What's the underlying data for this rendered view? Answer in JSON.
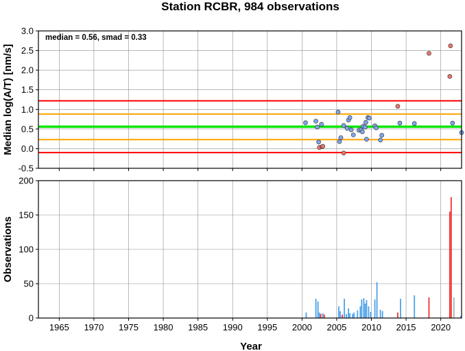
{
  "chart_data": [
    {
      "type": "scatter",
      "title": "Station RCBR, 984 observations",
      "xlabel": "",
      "ylabel": "Median log(A/T) [nm/s]",
      "annotation": "median = 0.56, smad = 0.33",
      "xlim": [
        1962,
        2023
      ],
      "ylim": [
        -0.5,
        3.0
      ],
      "xticks": [
        "1965",
        "1970",
        "1975",
        "1980",
        "1985",
        "1990",
        "1995",
        "2000",
        "2005",
        "2010",
        "2015",
        "2020"
      ],
      "yticks": [
        "-0.5",
        "0.0",
        "0.5",
        "1.0",
        "1.5",
        "2.0",
        "2.5",
        "3.0"
      ],
      "grid": true,
      "colors": {
        "normal": "#7ea6f0",
        "outlier": "#f0746a",
        "red_line": "#ff0000",
        "orange_line": "#ffa500",
        "green_band": "#00e600"
      },
      "hlines": [
        {
          "y": 1.22,
          "color": "#ff0000"
        },
        {
          "y": 0.88,
          "color": "#ffa500"
        },
        {
          "y": 0.56,
          "color": "#00e600",
          "band": [
            0.53,
            0.59
          ]
        },
        {
          "y": 0.23,
          "color": "#ffa500"
        },
        {
          "y": -0.1,
          "color": "#ff0000"
        }
      ],
      "series": [
        {
          "points": [
            [
              2000.5,
              0.66
            ],
            [
              2002.0,
              0.7
            ],
            [
              2002.2,
              0.55
            ],
            [
              2002.4,
              0.17
            ],
            [
              2002.8,
              0.62
            ],
            [
              2005.2,
              0.93
            ],
            [
              2005.4,
              0.18
            ],
            [
              2005.6,
              0.28
            ],
            [
              2006.0,
              0.59
            ],
            [
              2006.5,
              0.52
            ],
            [
              2006.7,
              0.73
            ],
            [
              2006.9,
              0.79
            ],
            [
              2007.1,
              0.48
            ],
            [
              2007.4,
              0.35
            ],
            [
              2008.2,
              0.47
            ],
            [
              2008.5,
              0.48
            ],
            [
              2008.7,
              0.43
            ],
            [
              2008.8,
              0.57
            ],
            [
              2009.1,
              0.55
            ],
            [
              2009.2,
              0.67
            ],
            [
              2009.3,
              0.24
            ],
            [
              2009.5,
              0.79
            ],
            [
              2009.7,
              0.78
            ],
            [
              2010.5,
              0.58
            ],
            [
              2010.7,
              0.53
            ],
            [
              2011.3,
              0.22
            ],
            [
              2011.5,
              0.34
            ],
            [
              2014.1,
              0.65
            ],
            [
              2016.2,
              0.64
            ],
            [
              2021.7,
              0.65
            ],
            [
              2023.0,
              0.41
            ]
          ]
        },
        {
          "points": [
            [
              2002.5,
              0.03
            ],
            [
              2002.9,
              0.05
            ],
            [
              2003.0,
              0.06
            ],
            [
              2006.0,
              -0.11
            ],
            [
              2013.8,
              1.08
            ],
            [
              2018.3,
              2.43
            ],
            [
              2021.4,
              2.62
            ],
            [
              2021.3,
              1.84
            ]
          ]
        }
      ]
    },
    {
      "type": "bar",
      "xlabel": "Year",
      "ylabel": "Observations",
      "xlim": [
        1962,
        2023
      ],
      "ylim": [
        0,
        200
      ],
      "xticks": [
        "1965",
        "1970",
        "1975",
        "1980",
        "1985",
        "1990",
        "1995",
        "2000",
        "2005",
        "2010",
        "2015",
        "2020"
      ],
      "yticks": [
        "0",
        "50",
        "100",
        "150",
        "200"
      ],
      "grid": true,
      "bars": [
        {
          "x": 2000.6,
          "v": 8,
          "c": "blue"
        },
        {
          "x": 2002.0,
          "v": 28,
          "c": "blue"
        },
        {
          "x": 2002.3,
          "v": 24,
          "c": "blue"
        },
        {
          "x": 2002.5,
          "v": 8,
          "c": "blue"
        },
        {
          "x": 2002.7,
          "v": 6,
          "c": "red"
        },
        {
          "x": 2003.0,
          "v": 7,
          "c": "blue"
        },
        {
          "x": 2003.2,
          "v": 5,
          "c": "red"
        },
        {
          "x": 2005.3,
          "v": 17,
          "c": "blue"
        },
        {
          "x": 2005.5,
          "v": 10,
          "c": "blue"
        },
        {
          "x": 2005.8,
          "v": 5,
          "c": "red"
        },
        {
          "x": 2006.1,
          "v": 28,
          "c": "blue"
        },
        {
          "x": 2006.4,
          "v": 6,
          "c": "blue"
        },
        {
          "x": 2006.7,
          "v": 14,
          "c": "blue"
        },
        {
          "x": 2006.9,
          "v": 7,
          "c": "blue"
        },
        {
          "x": 2007.3,
          "v": 6,
          "c": "blue"
        },
        {
          "x": 2007.5,
          "v": 8,
          "c": "blue"
        },
        {
          "x": 2008.0,
          "v": 11,
          "c": "blue"
        },
        {
          "x": 2008.4,
          "v": 17,
          "c": "blue"
        },
        {
          "x": 2008.6,
          "v": 27,
          "c": "blue"
        },
        {
          "x": 2008.9,
          "v": 29,
          "c": "blue"
        },
        {
          "x": 2009.1,
          "v": 21,
          "c": "blue"
        },
        {
          "x": 2009.3,
          "v": 26,
          "c": "blue"
        },
        {
          "x": 2009.6,
          "v": 17,
          "c": "blue"
        },
        {
          "x": 2009.9,
          "v": 9,
          "c": "blue"
        },
        {
          "x": 2010.5,
          "v": 27,
          "c": "blue"
        },
        {
          "x": 2010.8,
          "v": 52,
          "c": "blue"
        },
        {
          "x": 2011.3,
          "v": 12,
          "c": "blue"
        },
        {
          "x": 2011.6,
          "v": 10,
          "c": "blue"
        },
        {
          "x": 2013.8,
          "v": 8,
          "c": "red"
        },
        {
          "x": 2014.2,
          "v": 28,
          "c": "blue"
        },
        {
          "x": 2016.2,
          "v": 33,
          "c": "blue"
        },
        {
          "x": 2018.3,
          "v": 30,
          "c": "red"
        },
        {
          "x": 2021.3,
          "v": 155,
          "c": "red"
        },
        {
          "x": 2021.5,
          "v": 176,
          "c": "red"
        },
        {
          "x": 2021.9,
          "v": 30,
          "c": "gray"
        },
        {
          "x": 2022.9,
          "v": 3,
          "c": "blue"
        }
      ],
      "colors": {
        "blue": "#4ba2ea",
        "red": "#f03030",
        "gray": "#b0b0b0"
      }
    }
  ]
}
